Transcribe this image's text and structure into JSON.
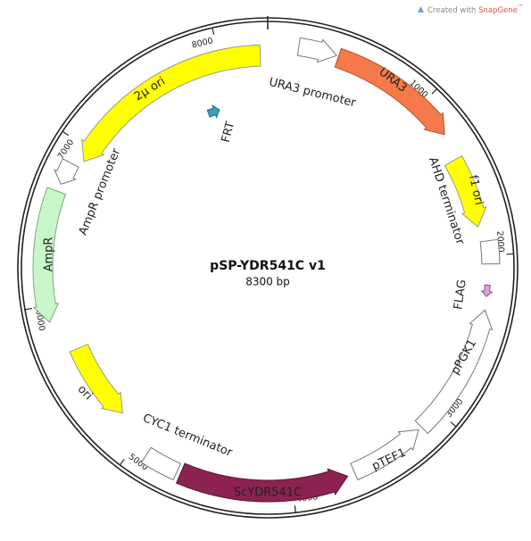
{
  "header": {
    "prefix": "Created with",
    "brand": "SnapGene",
    "suffix": "™"
  },
  "plasmid": {
    "name": "pSP-YDR541C v1",
    "length": {
      "value": 8300,
      "label": "8300 bp"
    },
    "ticks": [
      1000,
      2000,
      3000,
      4000,
      5000,
      6000,
      7000,
      8000
    ],
    "features": [
      {
        "label": "URA3 promoter"
      },
      {
        "label": "URA3"
      },
      {
        "label": "f1 ori"
      },
      {
        "label": "AHD terminator"
      },
      {
        "label": "FLAG"
      },
      {
        "label": "pPGK1"
      },
      {
        "label": "pTEF1"
      },
      {
        "label": "ScYDR541C"
      },
      {
        "label": "CYC1 terminator"
      },
      {
        "label": "ori"
      },
      {
        "label": "AmpR"
      },
      {
        "label": "AmpR promoter"
      },
      {
        "label": "2μ ori"
      },
      {
        "label": "FRT"
      }
    ]
  }
}
